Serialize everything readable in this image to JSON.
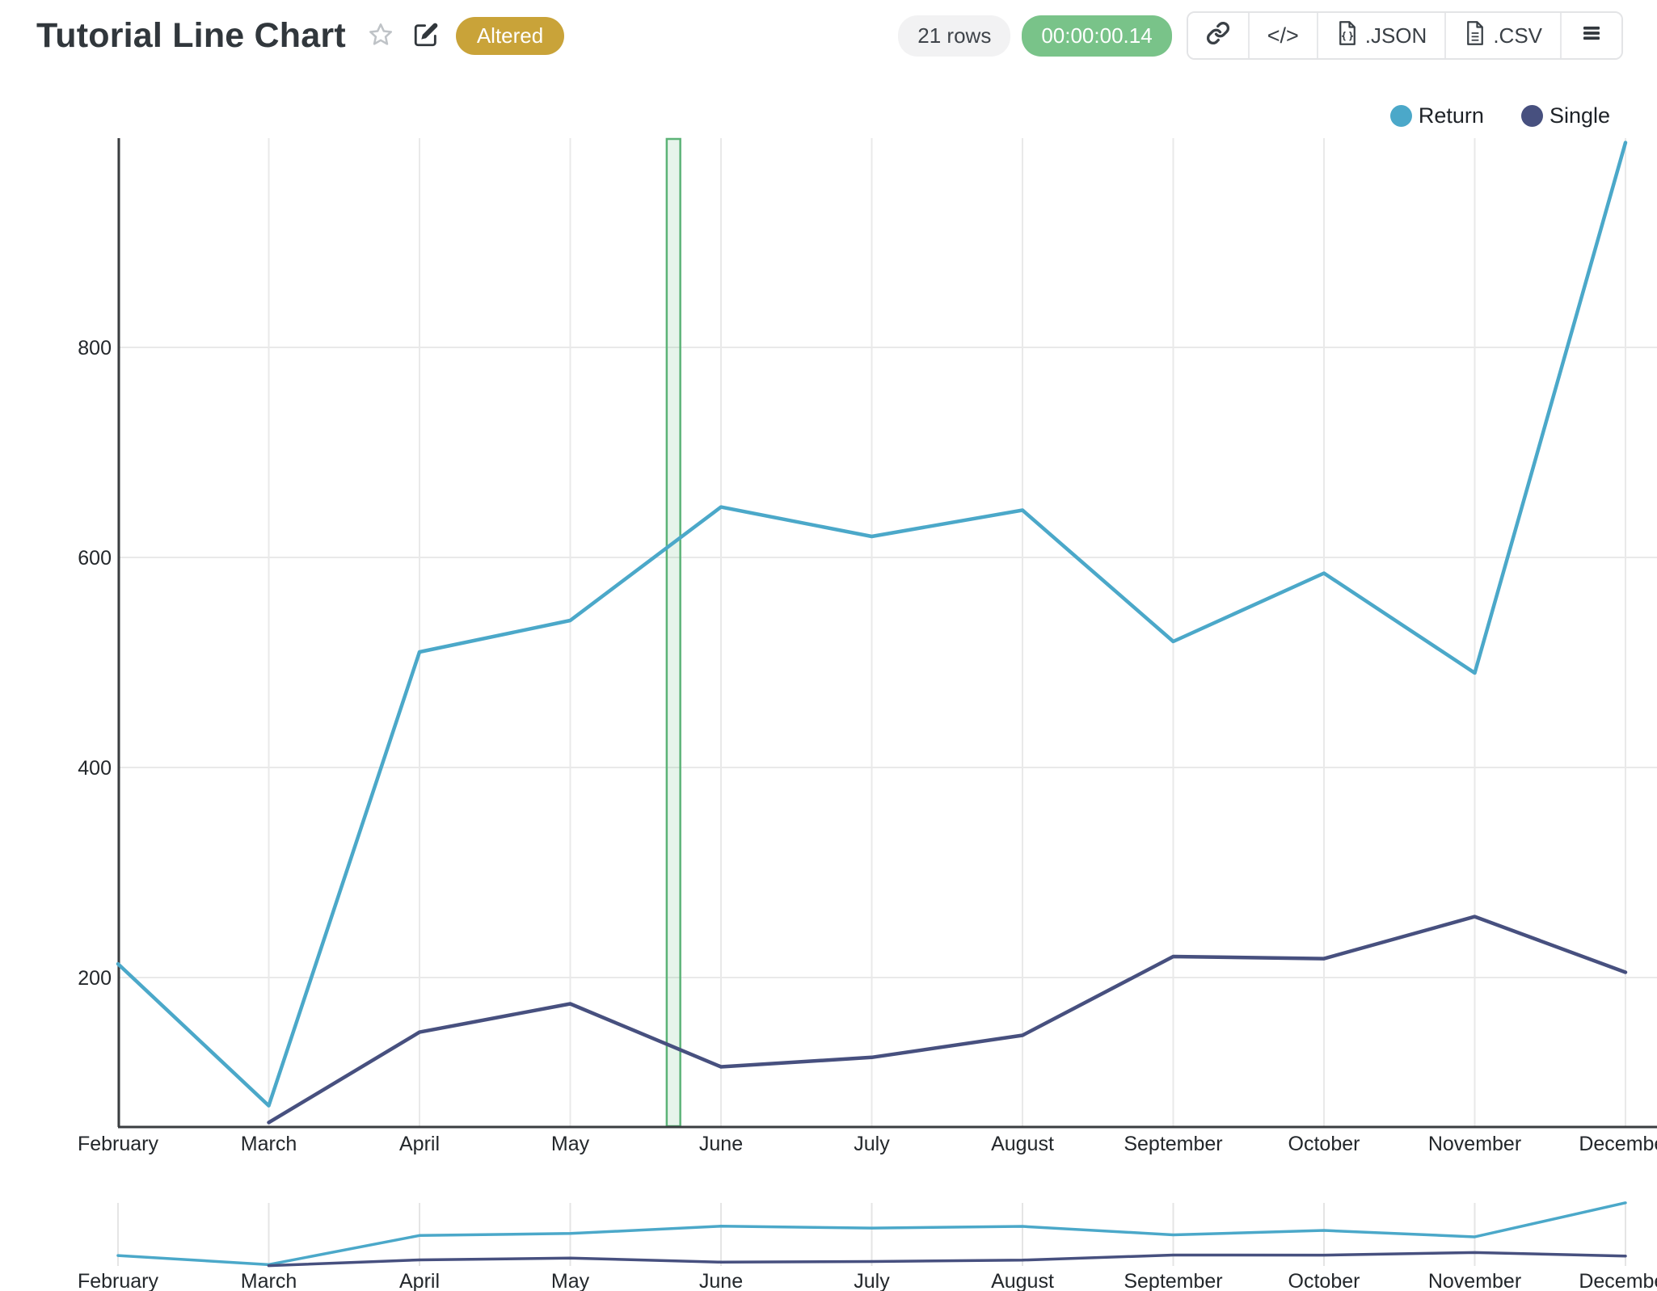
{
  "header": {
    "title": "Tutorial Line Chart",
    "status_badge": "Altered",
    "rows_pill": "21 rows",
    "timer_pill": "00:00:00.14",
    "json_button": ".JSON",
    "csv_button": ".CSV"
  },
  "legend": {
    "items": [
      {
        "label": "Return",
        "color": "#4BA8C9"
      },
      {
        "label": "Single",
        "color": "#47507F"
      }
    ]
  },
  "colors": {
    "badge_gold": "#C9A339",
    "timer_green": "#79C389",
    "band_green": "#5CB377",
    "grid": "#E9E9E9",
    "axis": "#3A3D40"
  },
  "chart_data": {
    "type": "line",
    "title": "Tutorial Line Chart",
    "categories": [
      "February",
      "March",
      "April",
      "May",
      "June",
      "July",
      "August",
      "September",
      "October",
      "November",
      "December"
    ],
    "series": [
      {
        "name": "Return",
        "color": "#4BA8C9",
        "values": [
          213,
          78,
          510,
          540,
          648,
          620,
          645,
          520,
          585,
          490,
          995
        ]
      },
      {
        "name": "Single",
        "color": "#47507F",
        "values": [
          null,
          62,
          148,
          175,
          115,
          124,
          145,
          220,
          218,
          258,
          205
        ]
      }
    ],
    "y_ticks": [
      200,
      400,
      600,
      800
    ],
    "ylim": [
      58,
      1005
    ],
    "grid": true,
    "legend_position": "top-right",
    "annotation_band": {
      "from_index": 3.64,
      "to_index": 3.73,
      "color": "#5CB377"
    },
    "navigator": true
  }
}
